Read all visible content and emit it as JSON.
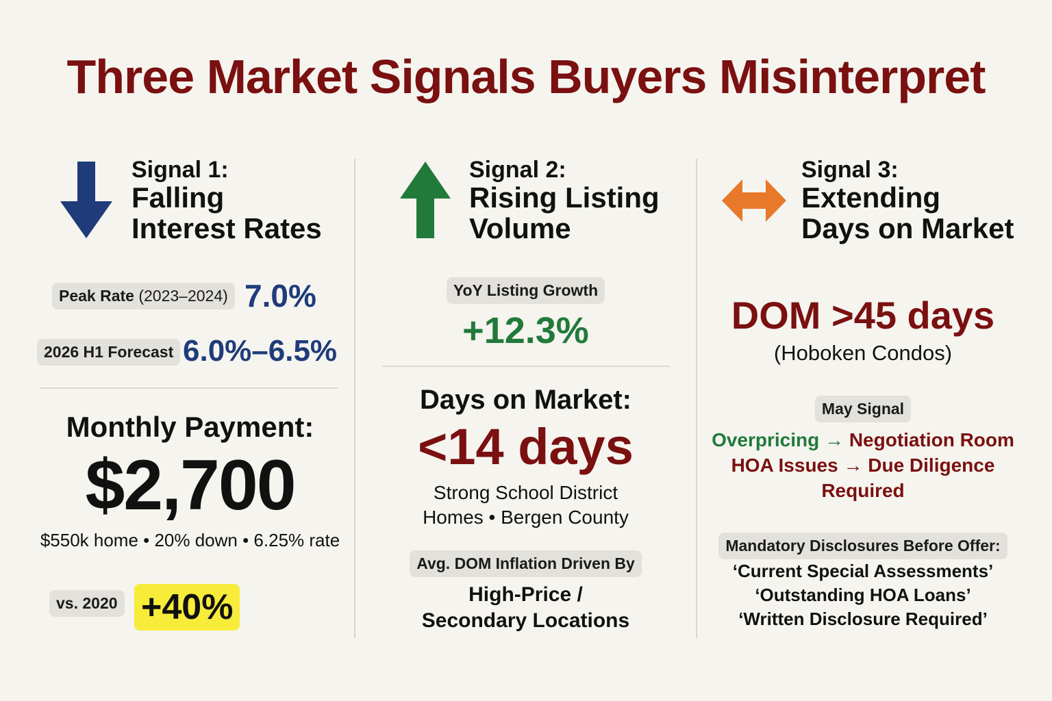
{
  "title": "Three Market Signals Buyers Misinterpret",
  "colors": {
    "title": "#7a1010",
    "blue": "#1f3b7a",
    "green": "#217a3a",
    "red": "#7a1010",
    "orange": "#e8782a",
    "yellow": "#f7ec3a"
  },
  "signal1": {
    "icon": "down-arrow-icon",
    "label": "Signal 1:",
    "name_line1": "Falling",
    "name_line2": "Interest Rates",
    "peak_label_bold": "Peak Rate",
    "peak_label_years": "(2023–2024)",
    "peak_value": "7.0%",
    "forecast_label": "2026 H1 Forecast",
    "forecast_value": "6.0%–6.5%",
    "payment_label": "Monthly Payment:",
    "payment_value": "$2,700",
    "payment_note": "$550k home • 20% down • 6.25% rate",
    "vs_label": "vs. 2020",
    "vs_value": "+40%"
  },
  "signal2": {
    "icon": "up-arrow-icon",
    "label": "Signal 2:",
    "name_line1": "Rising Listing",
    "name_line2": "Volume",
    "growth_label": "YoY Listing Growth",
    "growth_value": "+12.3%",
    "dom_label": "Days on Market:",
    "dom_value": "<14 days",
    "dom_note_line1": "Strong School District",
    "dom_note_line2": "Homes • Bergen County",
    "inflation_label": "Avg. DOM Inflation Driven By",
    "inflation_line1": "High-Price /",
    "inflation_line2": "Secondary Locations"
  },
  "signal3": {
    "icon": "left-right-arrow-icon",
    "label": "Signal 3:",
    "name_line1": "Extending",
    "name_line2": "Days on Market",
    "dom_value": "DOM >45 days",
    "dom_note": "(Hoboken Condos)",
    "may_signal_label": "May Signal",
    "line1_a": "Overpricing",
    "line1_b": "Negotiation Room",
    "line2": "HOA Issues → Due Diligence",
    "line3": "Required",
    "disclosures_label": "Mandatory Disclosures Before Offer:",
    "disclosure1": "‘Current Special Assessments’",
    "disclosure2": "‘Outstanding HOA Loans’",
    "disclosure3": "‘Written Disclosure Required’"
  }
}
